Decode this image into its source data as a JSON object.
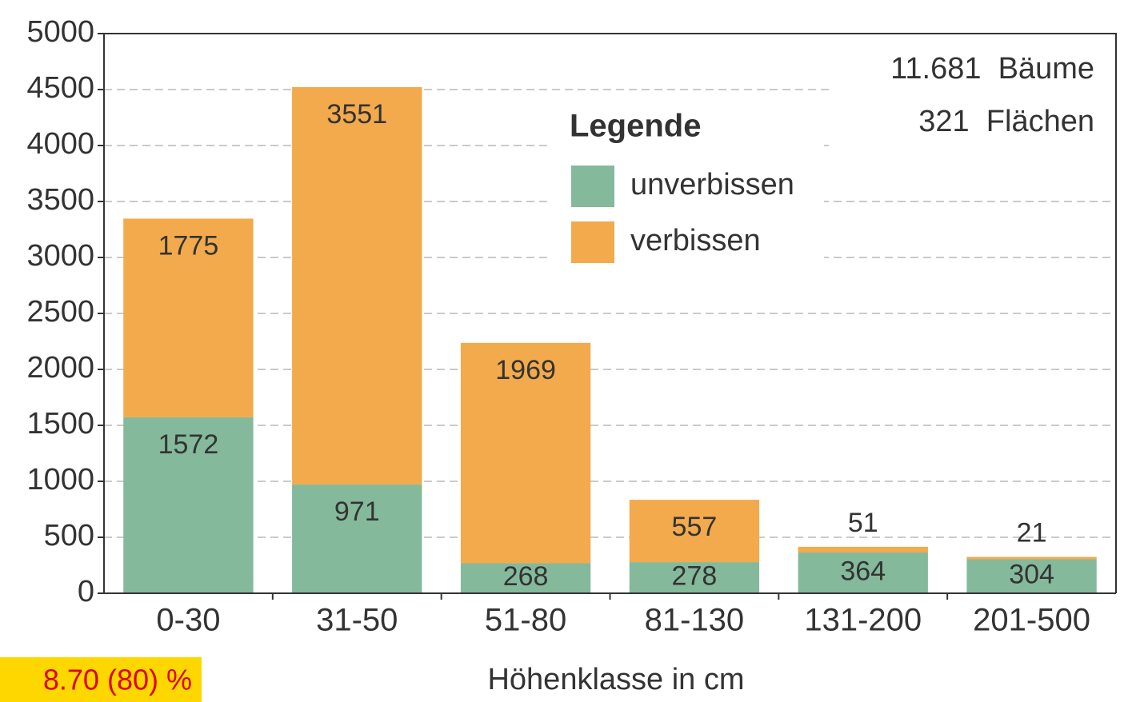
{
  "chart_data": {
    "type": "stacked_bar",
    "categories": [
      "0-30",
      "31-50",
      "51-80",
      "81-130",
      "131-200",
      "201-500"
    ],
    "series": [
      {
        "name": "unverbissen",
        "color": "#84b99c",
        "values": [
          1572,
          971,
          268,
          278,
          364,
          304
        ]
      },
      {
        "name": "verbissen",
        "color": "#f2aa4c",
        "values": [
          1775,
          3551,
          1969,
          557,
          51,
          21
        ]
      }
    ],
    "legend_title": "Legende",
    "annotations": [
      "11.681  Bäume",
      "321  Flächen"
    ],
    "x_label": "Höhenklasse in cm",
    "footnote": "8.70 (80) %",
    "ylim": [
      0,
      5000
    ],
    "yticks": [
      0,
      500,
      1000,
      1500,
      2000,
      2500,
      3000,
      3500,
      4000,
      4500,
      5000
    ],
    "grid": true
  }
}
